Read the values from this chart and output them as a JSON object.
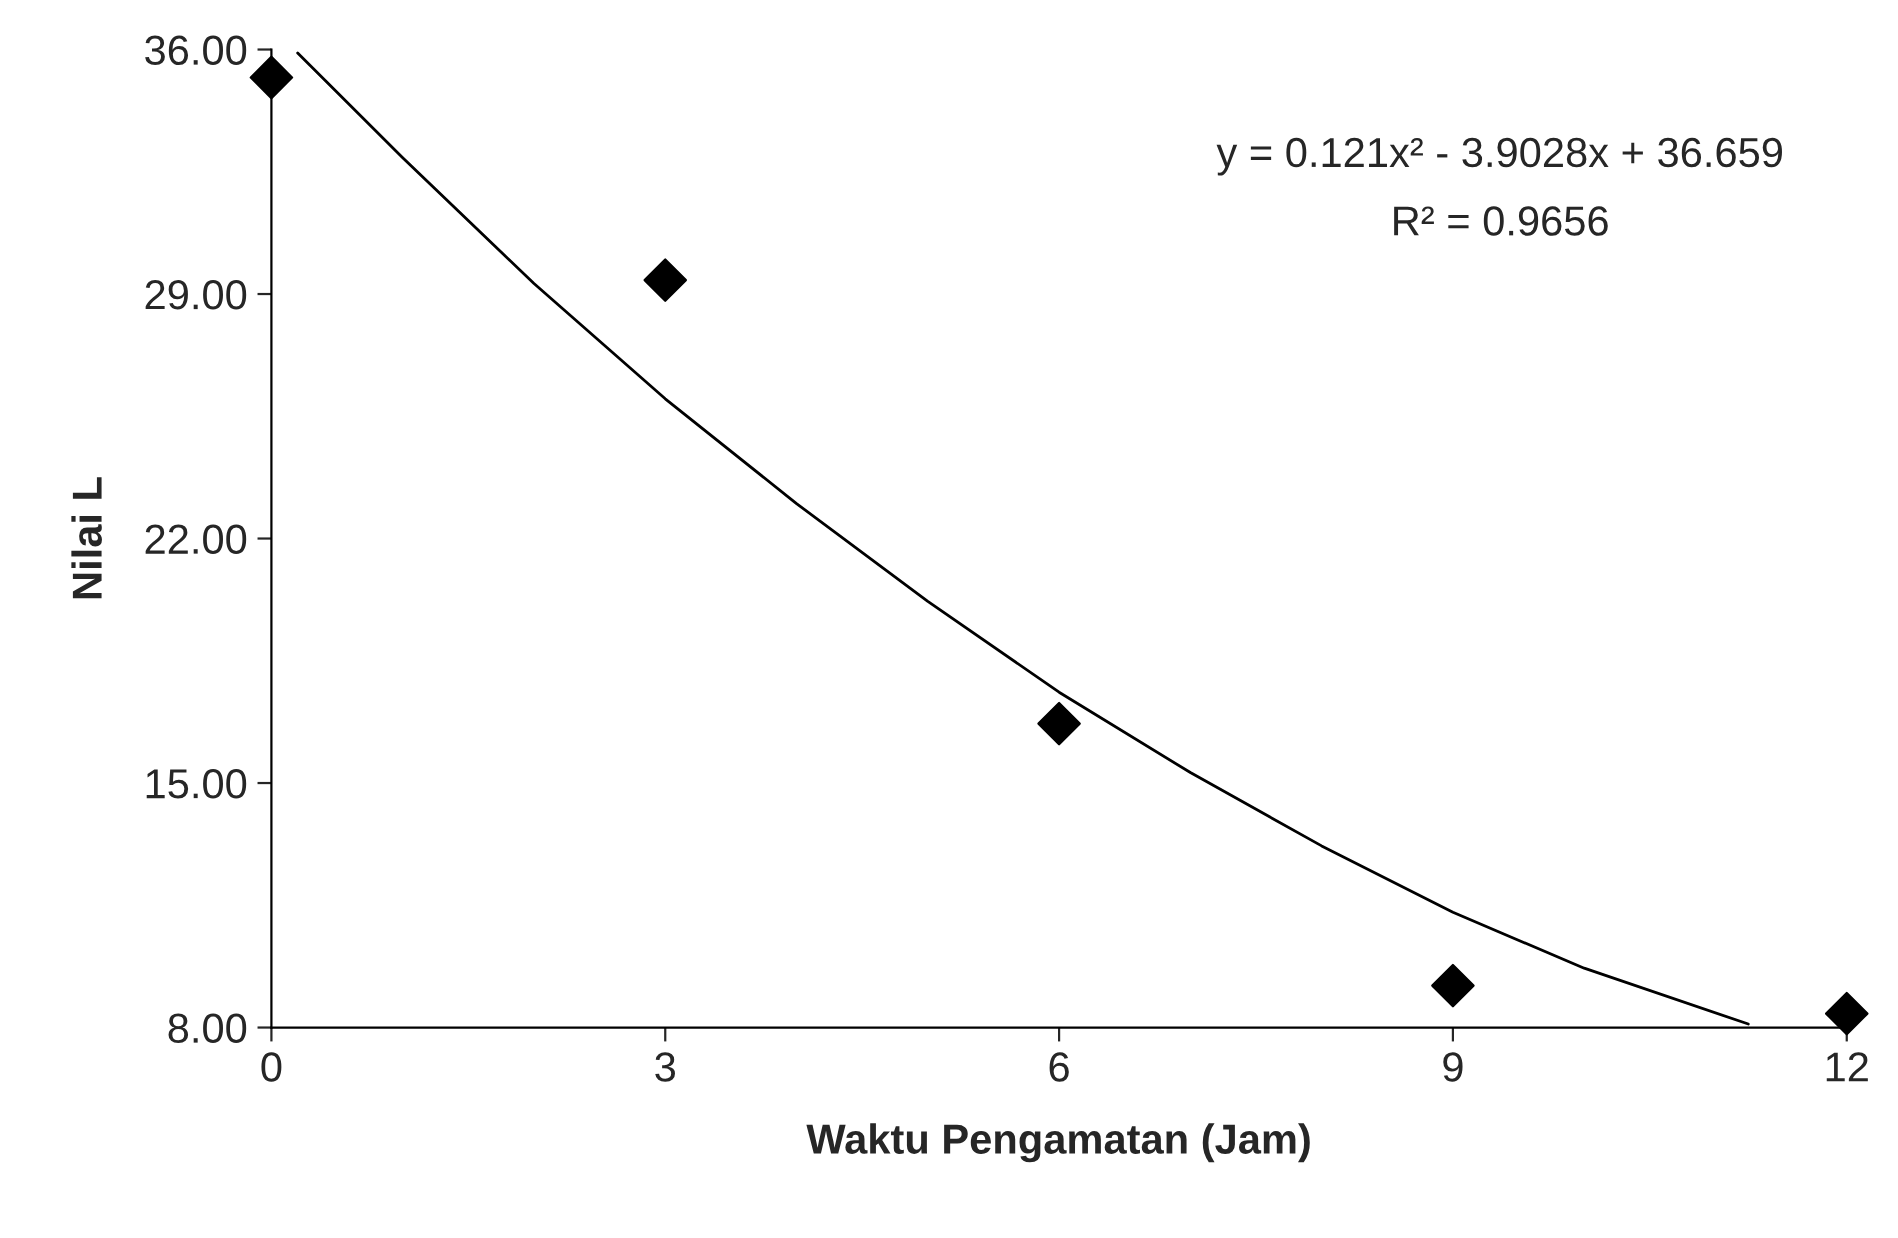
{
  "chart_data": {
    "type": "scatter",
    "xlabel": "Waktu Pengamatan (Jam)",
    "ylabel": "Nilai L",
    "x": [
      0,
      3,
      6,
      9,
      12
    ],
    "series": [
      {
        "color": "#000000",
        "marker": "diamond",
        "values": [
          35.2,
          29.4,
          16.7,
          9.2,
          8.4
        ]
      },
      {
        "type": "line",
        "color": "#000000",
        "marker": "none",
        "x": [
          0.2,
          1,
          2,
          3,
          4,
          5,
          6,
          7,
          8,
          9,
          10,
          11.25
        ],
        "values": [
          35.9,
          32.9,
          29.3,
          26.0,
          23.0,
          20.2,
          17.6,
          15.3,
          13.2,
          11.3,
          9.7,
          8.1
        ]
      }
    ],
    "annotations": [
      "y = 0.121x² - 3.9028x + 36.659",
      "R² = 0.9656"
    ],
    "xlim": [
      0,
      12
    ],
    "xticks": [
      0,
      3,
      6,
      9,
      12
    ],
    "ylim": [
      8,
      36
    ],
    "yticks": [
      {
        "value": 8,
        "label": "8.00"
      },
      {
        "value": 15,
        "label": "15.00"
      },
      {
        "value": 22,
        "label": "22.00"
      },
      {
        "value": 29,
        "label": "29.00"
      },
      {
        "value": 36,
        "label": "36.00"
      }
    ],
    "grid": false,
    "legend": false
  }
}
